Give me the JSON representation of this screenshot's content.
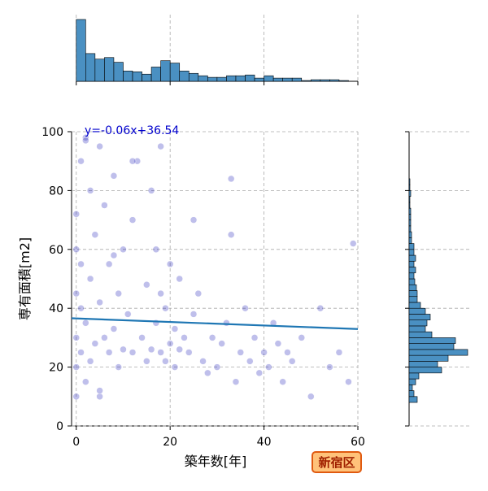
{
  "chart_data": [
    {
      "type": "scatter",
      "x_label": "築年数[年]",
      "y_label": "専有面積[m2]",
      "xlim": [
        -1,
        60
      ],
      "ylim": [
        0,
        100
      ],
      "xticks": [
        0,
        20,
        40,
        60
      ],
      "yticks": [
        0,
        20,
        40,
        60,
        80,
        100
      ],
      "grid": true,
      "color": "#0000b0",
      "x": [
        0,
        0,
        0,
        0,
        0,
        0,
        1,
        1,
        1,
        1,
        2,
        2,
        2,
        3,
        3,
        3,
        4,
        4,
        5,
        5,
        5,
        6,
        6,
        7,
        7,
        8,
        8,
        9,
        9,
        10,
        10,
        11,
        12,
        12,
        13,
        14,
        15,
        15,
        16,
        16,
        17,
        17,
        18,
        18,
        19,
        19,
        20,
        20,
        21,
        21,
        22,
        22,
        23,
        24,
        25,
        26,
        27,
        28,
        29,
        30,
        31,
        32,
        33,
        34,
        35,
        36,
        37,
        38,
        39,
        40,
        41,
        42,
        43,
        44,
        45,
        46,
        48,
        50,
        52,
        54,
        56,
        58,
        59,
        2,
        5,
        8,
        12,
        18,
        25,
        33
      ],
      "y": [
        10,
        20,
        30,
        45,
        60,
        72,
        25,
        40,
        55,
        90,
        15,
        35,
        98,
        22,
        50,
        80,
        28,
        65,
        10,
        42,
        95,
        30,
        75,
        25,
        55,
        33,
        85,
        20,
        45,
        26,
        60,
        38,
        25,
        70,
        90,
        30,
        22,
        48,
        26,
        80,
        35,
        60,
        25,
        45,
        22,
        40,
        28,
        55,
        20,
        33,
        26,
        50,
        30,
        25,
        38,
        45,
        22,
        18,
        30,
        20,
        28,
        35,
        84,
        15,
        25,
        40,
        22,
        30,
        18,
        25,
        20,
        35,
        28,
        15,
        25,
        22,
        30,
        10,
        40,
        20,
        25,
        15,
        62,
        97,
        12,
        58,
        90,
        95,
        70,
        65
      ],
      "regression": {
        "slope": -0.06,
        "intercept": 36.54,
        "label": "y=-0.06x+36.54",
        "color": "#1f77b4",
        "label_color": "#0000cc"
      }
    },
    {
      "type": "histogram",
      "color": "#4a90c2",
      "bins": [
        0,
        2,
        4,
        6,
        8,
        10,
        12,
        14,
        16,
        18,
        20,
        22,
        24,
        26,
        28,
        30,
        32,
        34,
        36,
        38,
        40,
        42,
        44,
        46,
        48,
        50,
        52,
        54,
        56,
        58
      ],
      "counts": [
        390,
        175,
        140,
        150,
        120,
        65,
        60,
        45,
        90,
        130,
        115,
        65,
        50,
        35,
        25,
        25,
        35,
        35,
        40,
        20,
        35,
        20,
        20,
        20,
        5,
        10,
        10,
        10,
        5
      ],
      "xlim": [
        -1,
        60
      ],
      "ylim": [
        0,
        400
      ],
      "xticks": [
        0,
        20,
        40,
        60
      ],
      "grid": true
    },
    {
      "type": "histogram",
      "orientation": "horizontal",
      "color": "#4a90c2",
      "bins": [
        8,
        10,
        12,
        14,
        16,
        18,
        20,
        22,
        24,
        26,
        28,
        30,
        32,
        34,
        36,
        38,
        40,
        42,
        44,
        46,
        48,
        50,
        52,
        54,
        56,
        58,
        60,
        62,
        64,
        66,
        68,
        70,
        72,
        74,
        76,
        78,
        80,
        82,
        84
      ],
      "counts": [
        10,
        6,
        4,
        8,
        12,
        40,
        35,
        48,
        72,
        55,
        57,
        28,
        20,
        22,
        26,
        20,
        14,
        10,
        10,
        9,
        7,
        6,
        8,
        6,
        8,
        6,
        6,
        3,
        3,
        2,
        2,
        2,
        2,
        1,
        1,
        2,
        1,
        1
      ],
      "ylim": [
        0,
        100
      ],
      "xlim": [
        0,
        75
      ],
      "yticks": [
        0,
        20,
        40,
        60,
        80,
        100
      ],
      "grid": true
    }
  ],
  "badge": "新宿区"
}
